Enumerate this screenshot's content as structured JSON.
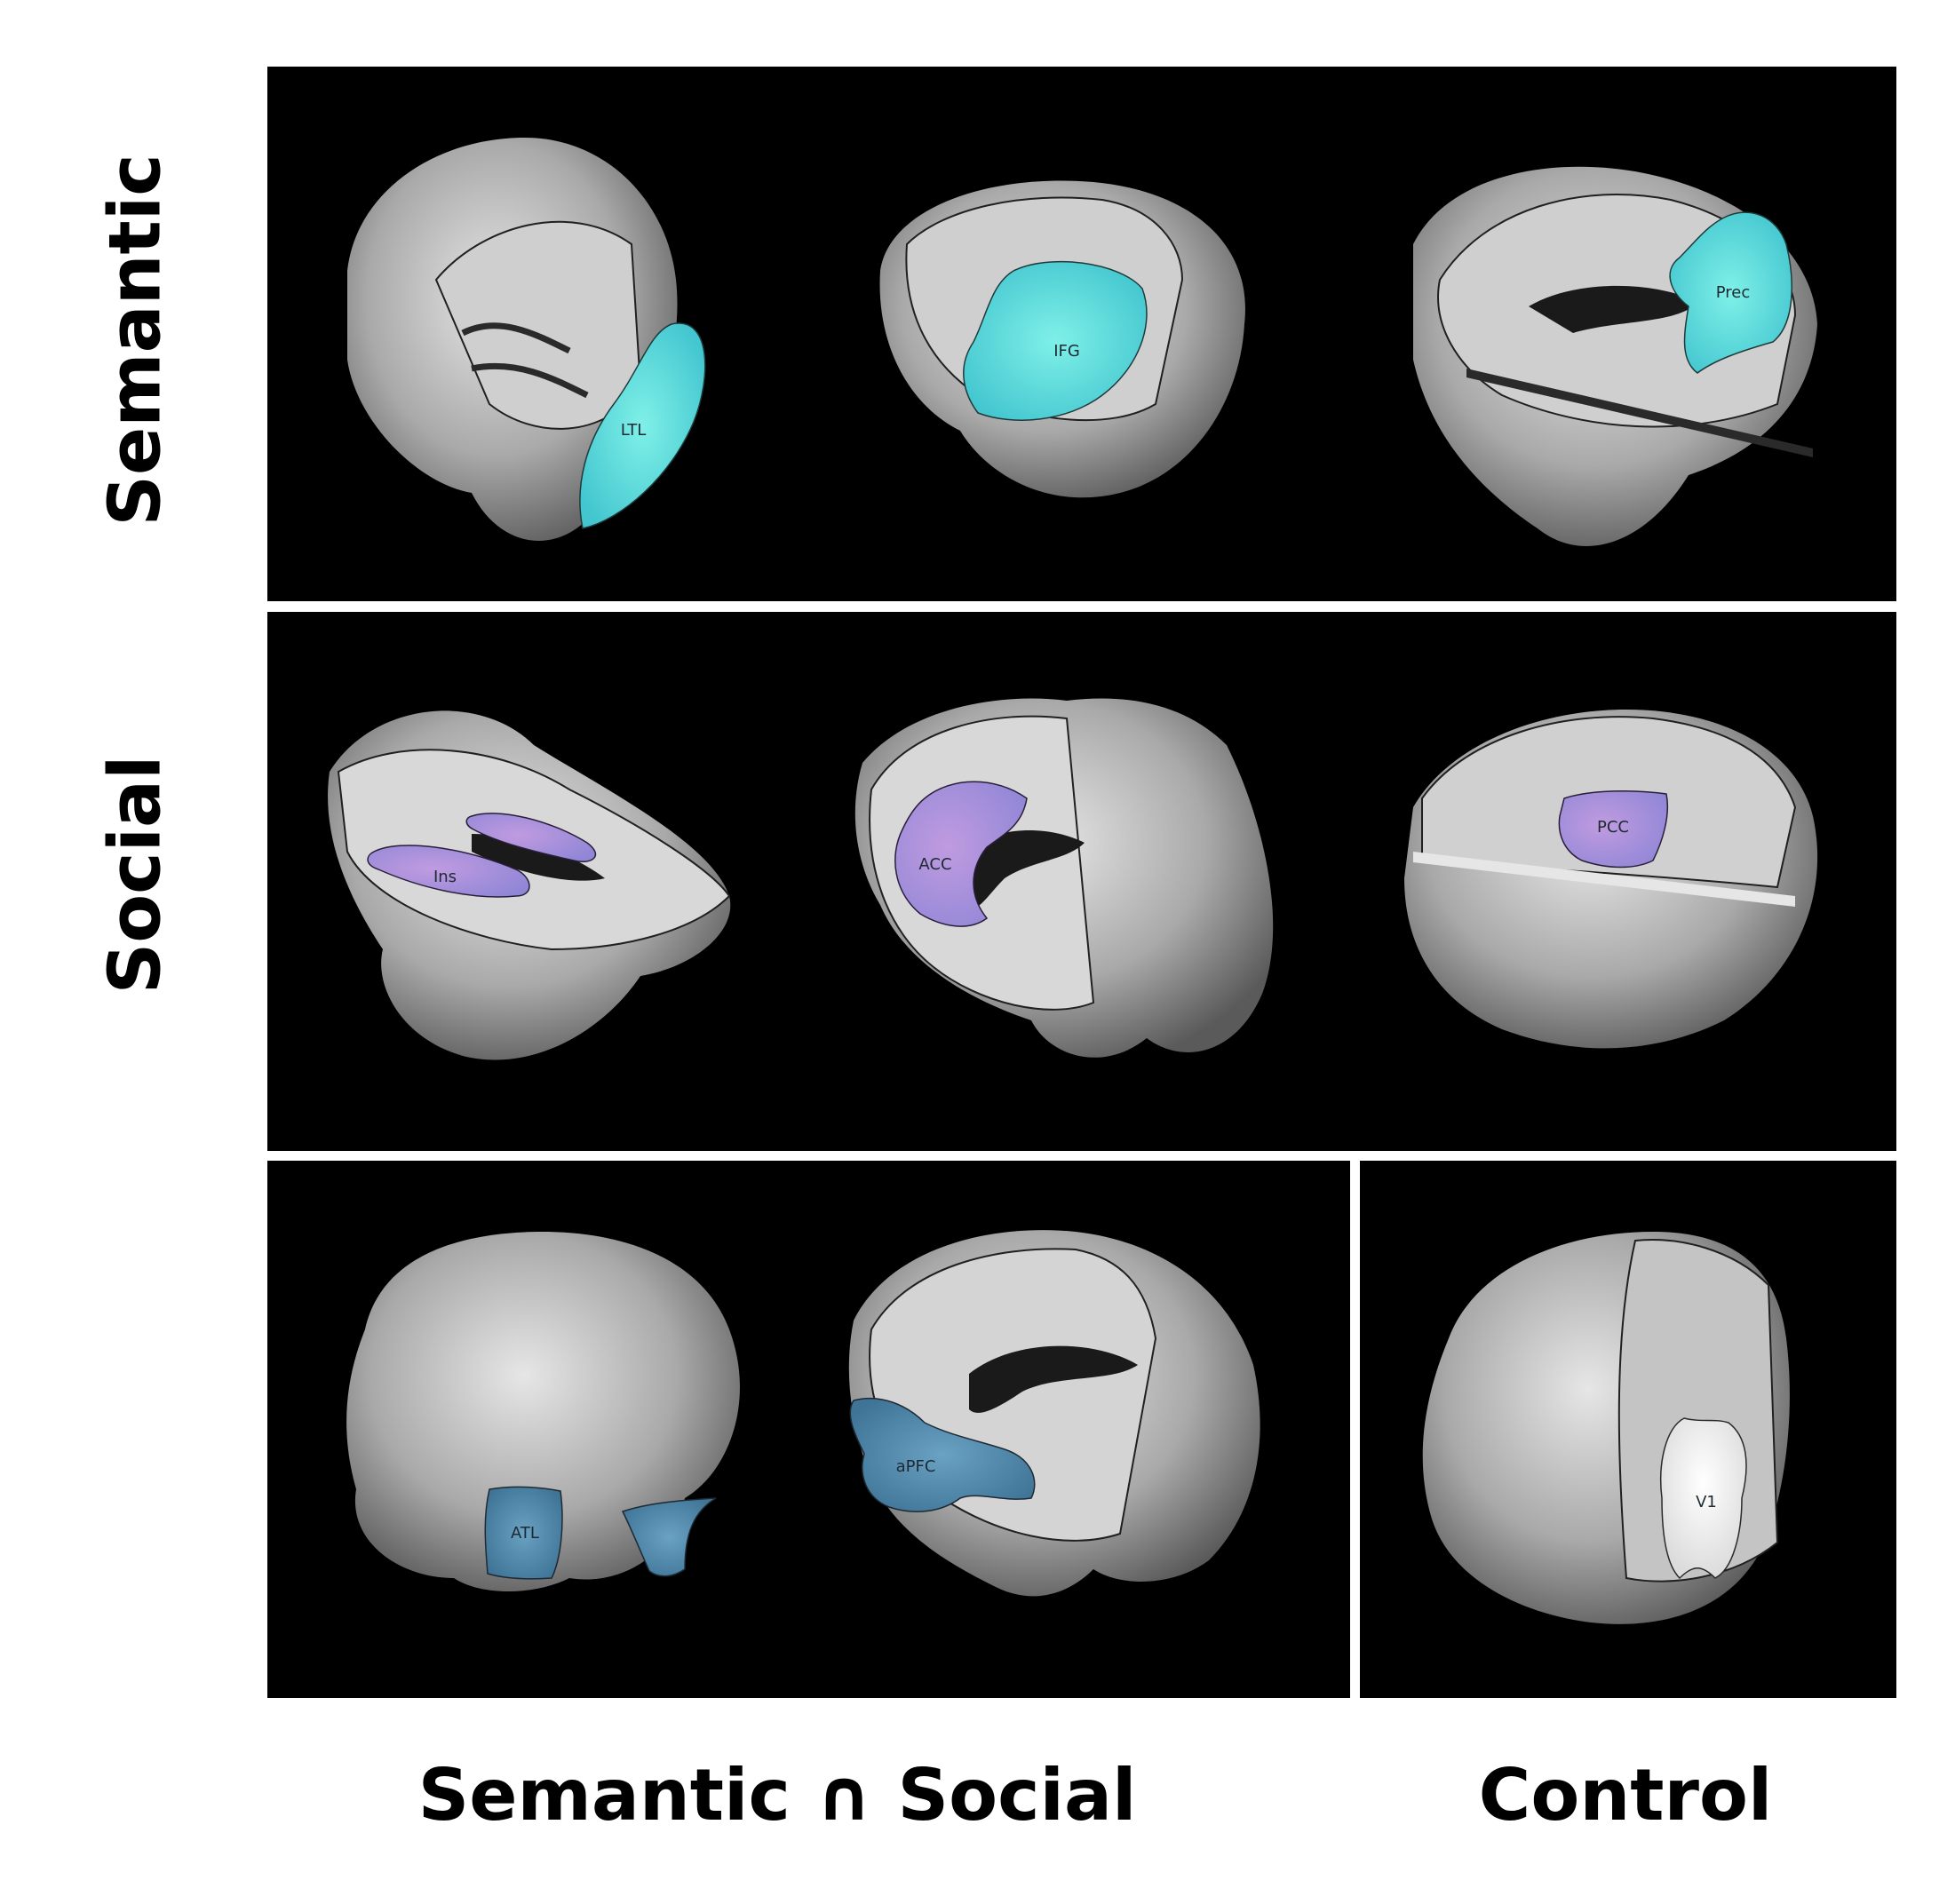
{
  "row_labels": {
    "semantic": "Semantic",
    "social": "Social"
  },
  "column_labels": {
    "intersection": "Semantic ∩ Social",
    "control": "Control"
  },
  "regions": {
    "semantic": [
      "LTL",
      "IFG",
      "Prec"
    ],
    "social": [
      "Ins",
      "ACC",
      "PCC"
    ],
    "intersection": [
      "ATL",
      "aPFC"
    ],
    "control": [
      "V1"
    ]
  },
  "colors": {
    "semantic_region": "#56d8d6",
    "social_region": "#a98bd9",
    "intersection_region": "#4f88ad",
    "control_region": "#f2f2f2",
    "panel_background": "#000000",
    "brain_gray": "#b7b7b7"
  }
}
